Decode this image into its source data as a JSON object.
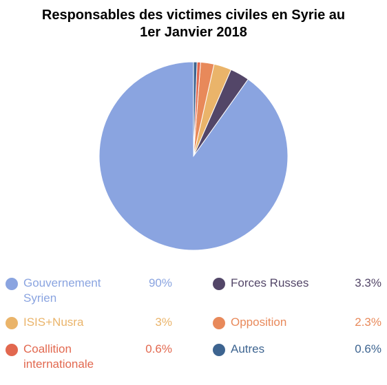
{
  "chart_data": {
    "type": "pie",
    "title_lines": [
      "Responsables des victimes civiles en Syrie au",
      "1er Janvier 2018"
    ],
    "legend_placement": "bottom",
    "slices": [
      {
        "label_lines": [
          "Gouvernement",
          "Syrien"
        ],
        "value": 90,
        "value_label": "90%",
        "color": "#8aa4e0"
      },
      {
        "label_lines": [
          "Forces Russes"
        ],
        "value": 3.3,
        "value_label": "3.3%",
        "color": "#534668"
      },
      {
        "label_lines": [
          "ISIS+Nusra"
        ],
        "value": 3,
        "value_label": "3%",
        "color": "#eab46a"
      },
      {
        "label_lines": [
          "Opposition"
        ],
        "value": 2.3,
        "value_label": "2.3%",
        "color": "#e8895a"
      },
      {
        "label_lines": [
          "Coallition",
          "internationale"
        ],
        "value": 0.6,
        "value_label": "0.6%",
        "color": "#e2684f"
      },
      {
        "label_lines": [
          "Autres"
        ],
        "value": 0.6,
        "value_label": "0.6%",
        "color": "#3d6490"
      }
    ]
  }
}
